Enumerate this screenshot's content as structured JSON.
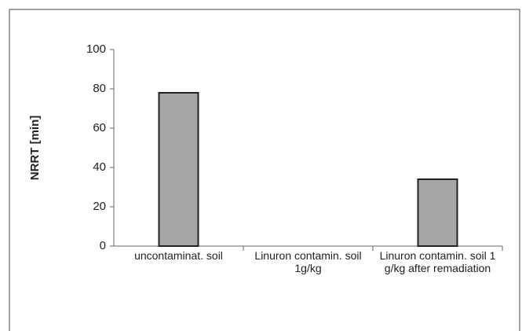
{
  "chart_data": {
    "type": "bar",
    "y_label": "NRRT [min]",
    "categories": [
      "uncontaminat. soil",
      "Linuron contamin. soil 1g/kg",
      "Linuron contamin. soil 1 g/kg after remadiation"
    ],
    "values": [
      78,
      0,
      34
    ],
    "color": "#a6a6a6",
    "ylim": [
      0,
      100
    ],
    "yticks": [
      0,
      20,
      40,
      60,
      80,
      100
    ],
    "grid": false
  }
}
